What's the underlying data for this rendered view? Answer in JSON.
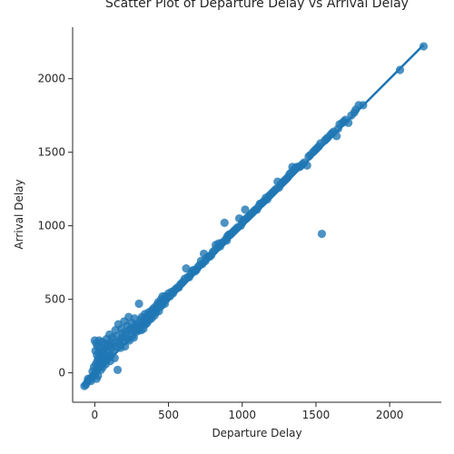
{
  "chart_data": {
    "type": "scatter",
    "title": "Scatter Plot of Departure Delay vs Arrival Delay",
    "xlabel": "Departure Delay",
    "ylabel": "Arrival Delay",
    "xlim": [
      -150,
      2350
    ],
    "ylim": [
      -200,
      2350
    ],
    "xticks": [
      0,
      500,
      1000,
      1500,
      2000
    ],
    "yticks": [
      0,
      500,
      1000,
      1500,
      2000
    ],
    "grid": false,
    "legend": "none",
    "marker_color": "#1f77b4",
    "regression_line": {
      "x": [
        -80,
        2230
      ],
      "y": [
        -90,
        2230
      ]
    },
    "points": [
      [
        -60,
        -80
      ],
      [
        -50,
        -60
      ],
      [
        -40,
        -50
      ],
      [
        -30,
        -40
      ],
      [
        -20,
        -30
      ],
      [
        -10,
        -20
      ],
      [
        0,
        -10
      ],
      [
        5,
        0
      ],
      [
        10,
        10
      ],
      [
        15,
        20
      ],
      [
        20,
        30
      ],
      [
        30,
        40
      ],
      [
        40,
        50
      ],
      [
        50,
        60
      ],
      [
        60,
        70
      ],
      [
        70,
        80
      ],
      [
        80,
        90
      ],
      [
        90,
        100
      ],
      [
        100,
        110
      ],
      [
        110,
        120
      ],
      [
        0,
        220
      ],
      [
        10,
        200
      ],
      [
        20,
        180
      ],
      [
        30,
        220
      ],
      [
        50,
        210
      ],
      [
        5,
        150
      ],
      [
        15,
        120
      ],
      [
        25,
        100
      ],
      [
        35,
        90
      ],
      [
        45,
        130
      ],
      [
        60,
        160
      ],
      [
        70,
        200
      ],
      [
        80,
        230
      ],
      [
        90,
        180
      ],
      [
        100,
        260
      ],
      [
        110,
        210
      ],
      [
        120,
        240
      ],
      [
        130,
        200
      ],
      [
        140,
        290
      ],
      [
        150,
        250
      ],
      [
        160,
        330
      ],
      [
        170,
        220
      ],
      [
        180,
        300
      ],
      [
        190,
        270
      ],
      [
        200,
        350
      ],
      [
        210,
        260
      ],
      [
        220,
        320
      ],
      [
        230,
        380
      ],
      [
        240,
        300
      ],
      [
        250,
        340
      ],
      [
        260,
        300
      ],
      [
        270,
        370
      ],
      [
        280,
        330
      ],
      [
        290,
        320
      ],
      [
        300,
        470
      ],
      [
        310,
        360
      ],
      [
        320,
        380
      ],
      [
        330,
        300
      ],
      [
        340,
        400
      ],
      [
        350,
        370
      ],
      [
        360,
        390
      ],
      [
        370,
        360
      ],
      [
        380,
        420
      ],
      [
        390,
        400
      ],
      [
        400,
        440
      ],
      [
        410,
        420
      ],
      [
        420,
        460
      ],
      [
        430,
        480
      ],
      [
        440,
        470
      ],
      [
        450,
        500
      ],
      [
        460,
        520
      ],
      [
        470,
        490
      ],
      [
        480,
        520
      ],
      [
        490,
        510
      ],
      [
        500,
        540
      ],
      [
        520,
        550
      ],
      [
        540,
        560
      ],
      [
        560,
        580
      ],
      [
        580,
        600
      ],
      [
        600,
        620
      ],
      [
        620,
        710
      ],
      [
        630,
        650
      ],
      [
        650,
        670
      ],
      [
        670,
        700
      ],
      [
        690,
        700
      ],
      [
        700,
        720
      ],
      [
        720,
        760
      ],
      [
        740,
        810
      ],
      [
        750,
        760
      ],
      [
        770,
        790
      ],
      [
        790,
        800
      ],
      [
        800,
        820
      ],
      [
        820,
        870
      ],
      [
        840,
        880
      ],
      [
        860,
        880
      ],
      [
        880,
        1020
      ],
      [
        890,
        910
      ],
      [
        900,
        930
      ],
      [
        920,
        940
      ],
      [
        940,
        960
      ],
      [
        960,
        980
      ],
      [
        980,
        1050
      ],
      [
        1000,
        1020
      ],
      [
        1020,
        1110
      ],
      [
        1040,
        1060
      ],
      [
        1060,
        1080
      ],
      [
        1080,
        1100
      ],
      [
        1100,
        1110
      ],
      [
        1120,
        1150
      ],
      [
        1140,
        1160
      ],
      [
        1160,
        1190
      ],
      [
        1180,
        1200
      ],
      [
        1200,
        1220
      ],
      [
        1220,
        1240
      ],
      [
        1240,
        1300
      ],
      [
        1260,
        1280
      ],
      [
        1280,
        1300
      ],
      [
        1300,
        1320
      ],
      [
        1320,
        1350
      ],
      [
        1340,
        1400
      ],
      [
        1360,
        1390
      ],
      [
        1380,
        1400
      ],
      [
        1400,
        1410
      ],
      [
        1420,
        1430
      ],
      [
        1440,
        1410
      ],
      [
        1460,
        1480
      ],
      [
        1480,
        1500
      ],
      [
        1500,
        1520
      ],
      [
        1520,
        1540
      ],
      [
        1540,
        945
      ],
      [
        1560,
        1580
      ],
      [
        1580,
        1600
      ],
      [
        1600,
        1620
      ],
      [
        1620,
        1640
      ],
      [
        1640,
        1610
      ],
      [
        1660,
        1690
      ],
      [
        1680,
        1700
      ],
      [
        1700,
        1720
      ],
      [
        1720,
        1700
      ],
      [
        1760,
        1770
      ],
      [
        1790,
        1820
      ],
      [
        1820,
        1820
      ],
      [
        2070,
        2060
      ],
      [
        2230,
        2220
      ],
      [
        -70,
        -90
      ],
      [
        -45,
        -40
      ],
      [
        -25,
        -55
      ],
      [
        -15,
        10
      ],
      [
        -5,
        40
      ],
      [
        8,
        60
      ],
      [
        12,
        -40
      ],
      [
        18,
        80
      ],
      [
        22,
        -20
      ],
      [
        28,
        140
      ],
      [
        33,
        60
      ],
      [
        38,
        170
      ],
      [
        42,
        20
      ],
      [
        48,
        100
      ],
      [
        55,
        40
      ],
      [
        62,
        140
      ],
      [
        68,
        110
      ],
      [
        75,
        60
      ],
      [
        82,
        150
      ],
      [
        88,
        120
      ],
      [
        95,
        190
      ],
      [
        105,
        80
      ],
      [
        115,
        170
      ],
      [
        125,
        150
      ],
      [
        135,
        100
      ],
      [
        145,
        180
      ],
      [
        155,
        20
      ],
      [
        165,
        200
      ],
      [
        175,
        170
      ],
      [
        185,
        240
      ],
      [
        195,
        210
      ],
      [
        205,
        180
      ],
      [
        215,
        280
      ],
      [
        225,
        230
      ],
      [
        235,
        220
      ],
      [
        245,
        290
      ],
      [
        255,
        250
      ],
      [
        265,
        240
      ],
      [
        275,
        310
      ],
      [
        285,
        280
      ],
      [
        295,
        290
      ],
      [
        305,
        310
      ],
      [
        315,
        290
      ],
      [
        325,
        350
      ],
      [
        335,
        340
      ],
      [
        345,
        330
      ],
      [
        355,
        340
      ],
      [
        365,
        410
      ],
      [
        375,
        380
      ],
      [
        385,
        370
      ],
      [
        395,
        430
      ],
      [
        405,
        390
      ],
      [
        415,
        410
      ],
      [
        425,
        440
      ],
      [
        435,
        420
      ],
      [
        445,
        450
      ],
      [
        455,
        460
      ],
      [
        465,
        480
      ],
      [
        475,
        470
      ],
      [
        485,
        500
      ],
      [
        510,
        520
      ],
      [
        530,
        540
      ],
      [
        550,
        570
      ],
      [
        570,
        580
      ],
      [
        590,
        610
      ],
      [
        610,
        640
      ],
      [
        640,
        650
      ],
      [
        660,
        690
      ],
      [
        680,
        690
      ],
      [
        710,
        730
      ],
      [
        730,
        740
      ],
      [
        760,
        780
      ],
      [
        780,
        790
      ],
      [
        810,
        830
      ],
      [
        830,
        850
      ],
      [
        850,
        860
      ],
      [
        870,
        890
      ],
      [
        895,
        900
      ],
      [
        910,
        940
      ],
      [
        930,
        950
      ],
      [
        950,
        970
      ],
      [
        970,
        990
      ],
      [
        990,
        1000
      ],
      [
        1010,
        1040
      ],
      [
        1030,
        1050
      ],
      [
        1050,
        1070
      ],
      [
        1070,
        1090
      ],
      [
        1090,
        1110
      ],
      [
        1110,
        1130
      ],
      [
        1130,
        1150
      ],
      [
        1150,
        1170
      ],
      [
        1170,
        1180
      ],
      [
        1190,
        1210
      ],
      [
        1210,
        1230
      ],
      [
        1230,
        1250
      ],
      [
        1250,
        1260
      ],
      [
        1270,
        1290
      ],
      [
        1290,
        1310
      ],
      [
        1310,
        1330
      ],
      [
        1330,
        1360
      ],
      [
        1350,
        1380
      ],
      [
        1370,
        1400
      ],
      [
        1390,
        1400
      ],
      [
        1410,
        1420
      ],
      [
        1450,
        1470
      ],
      [
        1490,
        1510
      ],
      [
        1510,
        1530
      ],
      [
        1530,
        1560
      ],
      [
        1570,
        1590
      ],
      [
        1610,
        1630
      ],
      [
        1650,
        1660
      ],
      [
        1690,
        1710
      ],
      [
        1740,
        1750
      ],
      [
        1770,
        1790
      ]
    ]
  }
}
